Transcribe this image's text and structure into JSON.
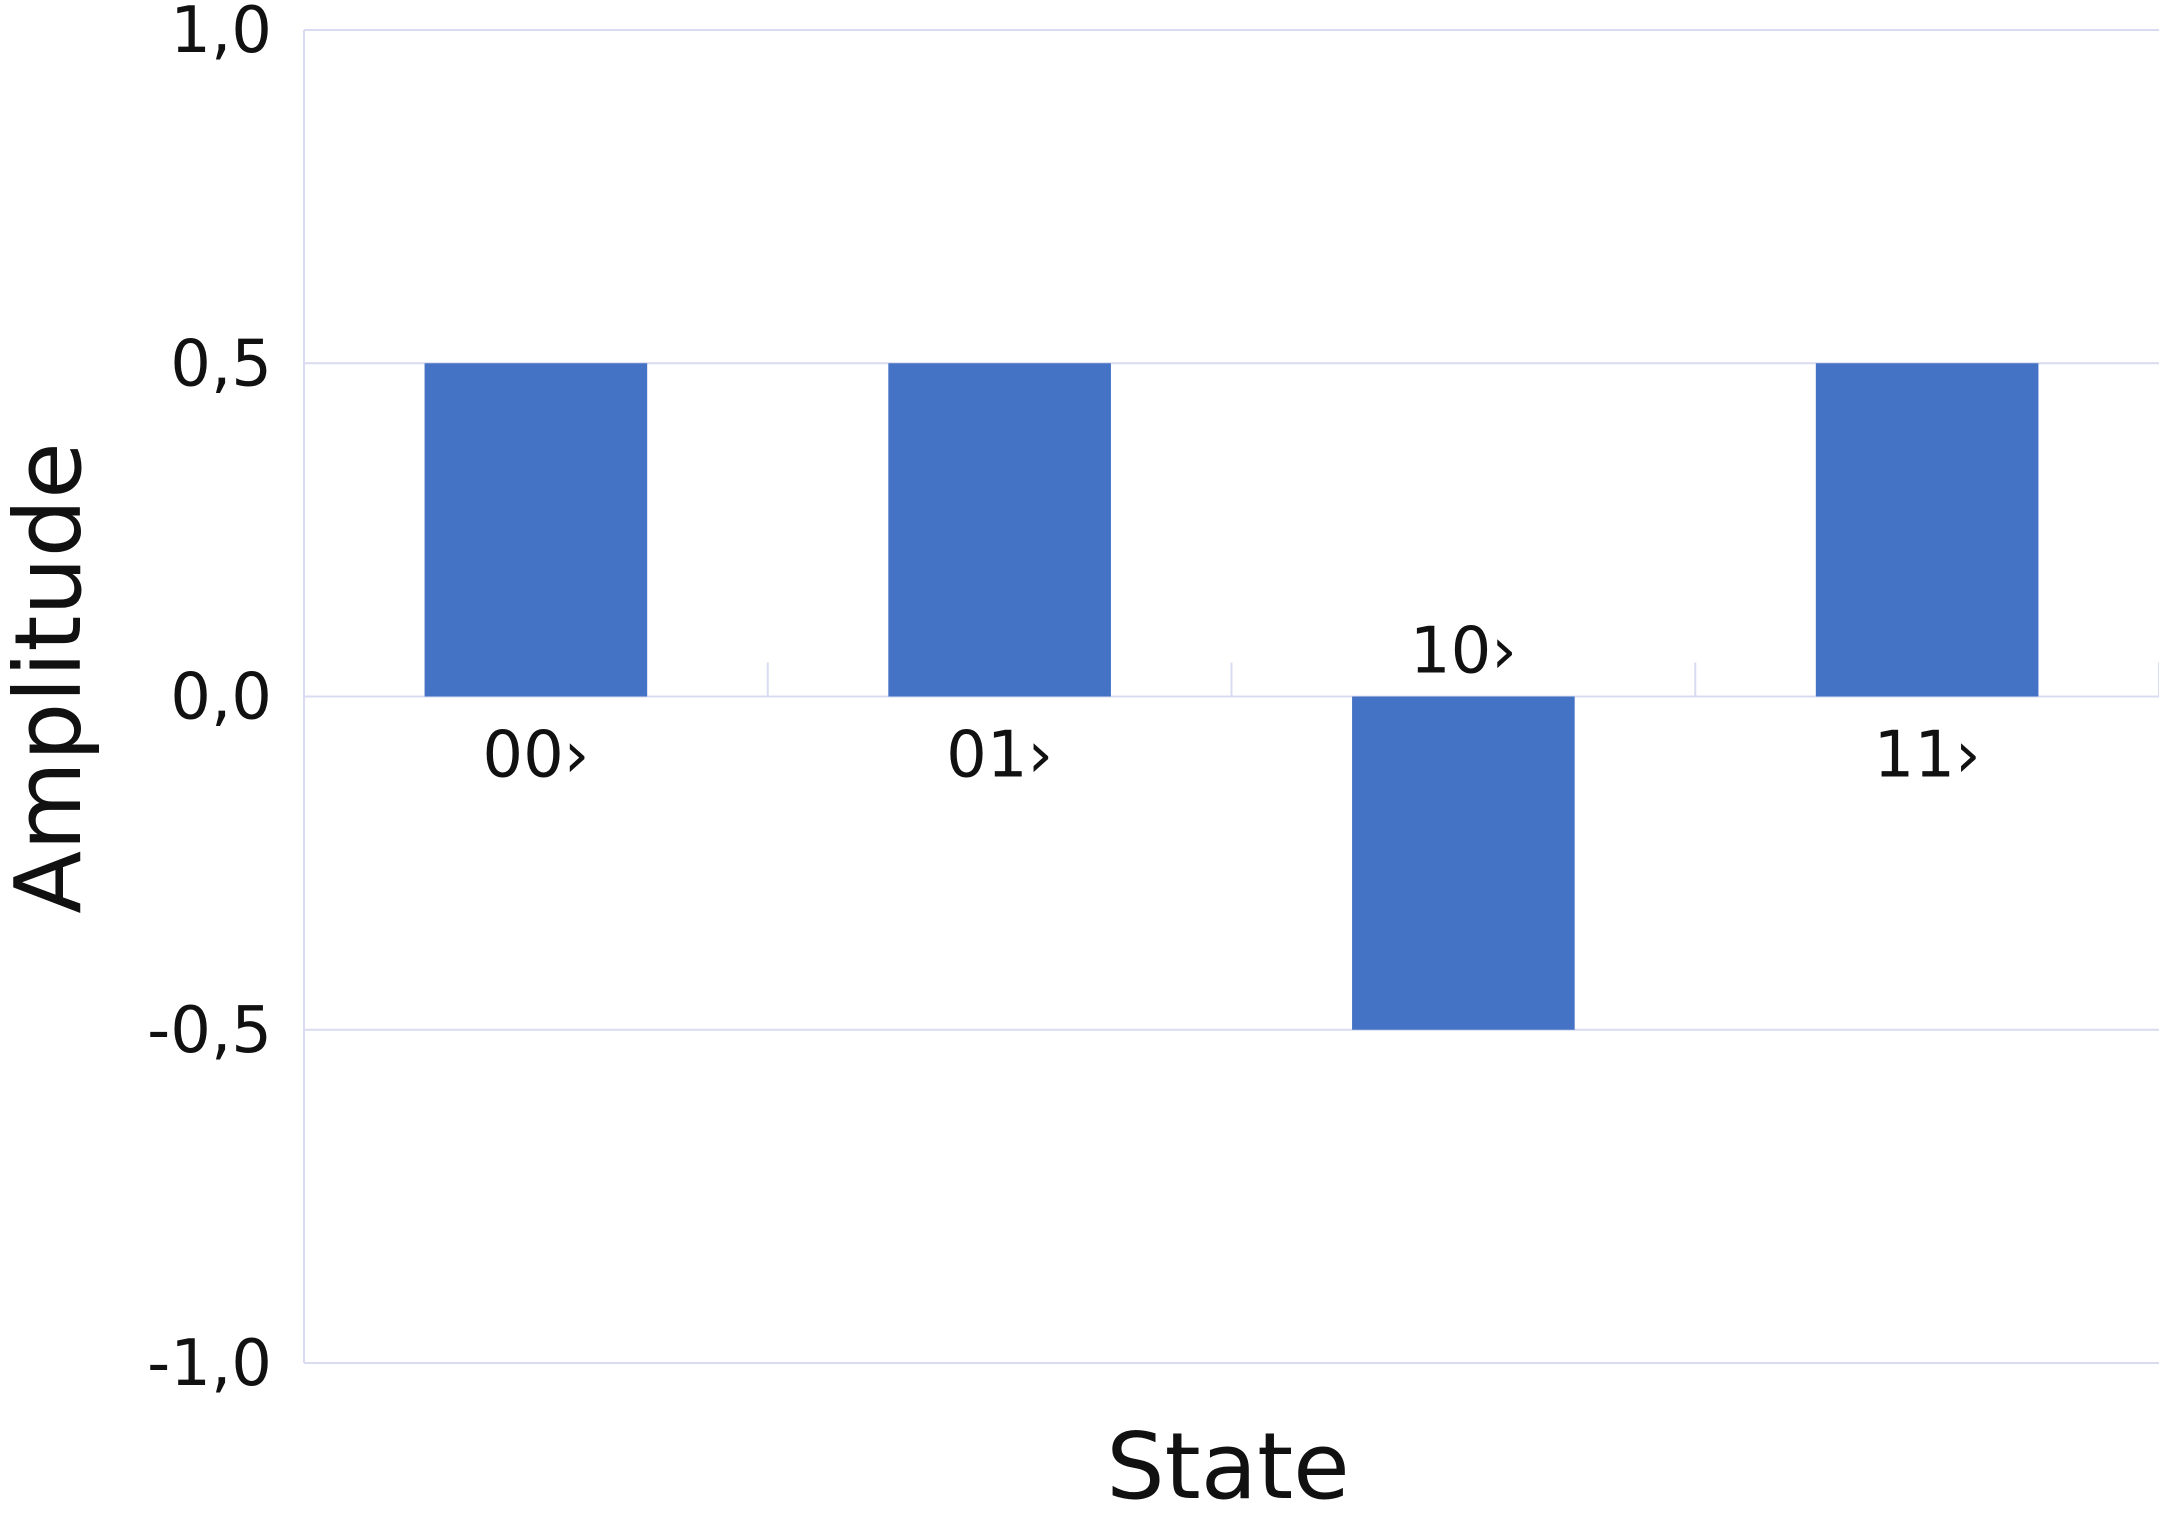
{
  "chart_data": {
    "type": "bar",
    "title": "",
    "xlabel": "State",
    "ylabel": "Amplitude",
    "categories": [
      "00›",
      "01›",
      "10›",
      "11›"
    ],
    "values": [
      0.5,
      0.5,
      -0.5,
      0.5
    ],
    "ylim": [
      -1.0,
      1.0
    ],
    "yticks": [
      1.0,
      0.5,
      0.0,
      -0.5,
      -1.0
    ],
    "ytick_labels": [
      "1,0",
      "0,5",
      "0,0",
      "-0,5",
      "-1,0"
    ],
    "grid": true,
    "legend": "none",
    "bar_color": "#4472C4",
    "grid_color": "#D9DCF0"
  }
}
